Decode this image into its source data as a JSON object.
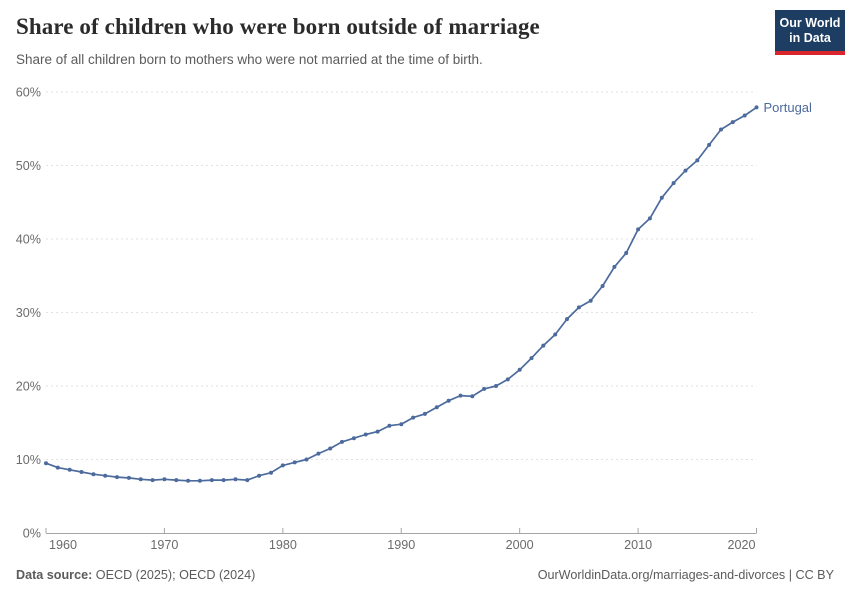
{
  "header": {
    "title": "Share of children who were born outside of marriage",
    "subtitle": "Share of all children born to mothers who were not married at the time of birth.",
    "logo": {
      "line1": "Our World",
      "line2": "in Data",
      "bg_color": "#1d3d63",
      "accent_color": "#d8262c"
    }
  },
  "chart_data": {
    "type": "line",
    "title": "Share of children who were born outside of marriage",
    "xlabel": "",
    "ylabel": "",
    "xlim": [
      1960,
      2020
    ],
    "ylim": [
      0,
      60
    ],
    "xticks": [
      1960,
      1970,
      1980,
      1990,
      2000,
      2010,
      2020
    ],
    "yticks": [
      0,
      10,
      20,
      30,
      40,
      50,
      60
    ],
    "ytick_suffix": "%",
    "grid": "horizontal-dashed",
    "legend": "end-of-line-label",
    "series": [
      {
        "name": "Portugal",
        "color": "#4c6a9c",
        "x": [
          1960,
          1961,
          1962,
          1963,
          1964,
          1965,
          1966,
          1967,
          1968,
          1969,
          1970,
          1971,
          1972,
          1973,
          1974,
          1975,
          1976,
          1977,
          1978,
          1979,
          1980,
          1981,
          1982,
          1983,
          1984,
          1985,
          1986,
          1987,
          1988,
          1989,
          1990,
          1991,
          1992,
          1993,
          1994,
          1995,
          1996,
          1997,
          1998,
          1999,
          2000,
          2001,
          2002,
          2003,
          2004,
          2005,
          2006,
          2007,
          2008,
          2009,
          2010,
          2011,
          2012,
          2013,
          2014,
          2015,
          2016,
          2017,
          2018,
          2019,
          2020
        ],
        "values": [
          9.5,
          8.9,
          8.6,
          8.3,
          8.0,
          7.8,
          7.6,
          7.5,
          7.3,
          7.2,
          7.3,
          7.2,
          7.1,
          7.1,
          7.2,
          7.2,
          7.3,
          7.2,
          7.8,
          8.2,
          9.2,
          9.6,
          10.0,
          10.8,
          11.5,
          12.4,
          12.9,
          13.4,
          13.8,
          14.6,
          14.8,
          15.7,
          16.2,
          17.1,
          18.0,
          18.7,
          18.6,
          19.6,
          20.0,
          20.9,
          22.2,
          23.8,
          25.5,
          27.0,
          29.1,
          30.7,
          31.6,
          33.6,
          36.2,
          38.1,
          41.3,
          42.8,
          45.6,
          47.6,
          49.3,
          50.7,
          52.8,
          54.9,
          55.9,
          56.8,
          57.9
        ]
      }
    ],
    "colors": {
      "gridline": "#e2e2e2",
      "axis": "#a5a5a5",
      "tick_label": "#6b6b6b"
    }
  },
  "footer": {
    "datasource_label": "Data source:",
    "datasource_text": " OECD (2025); OECD (2024)",
    "link_text": "OurWorldinData.org/marriages-and-divorces | CC BY"
  }
}
